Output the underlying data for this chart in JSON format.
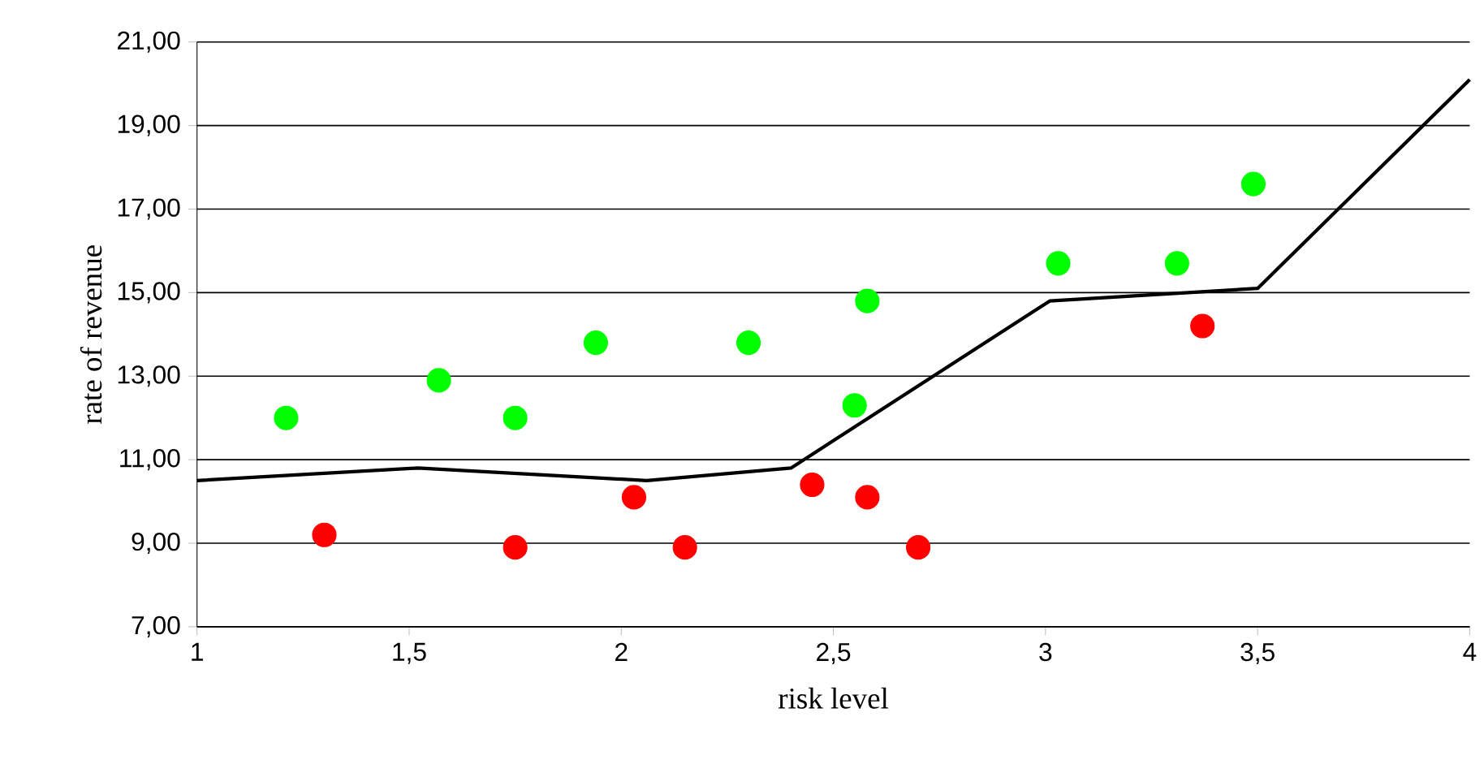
{
  "chart_data": {
    "type": "scatter",
    "xlabel": "risk level",
    "ylabel": "rate of revenue",
    "xlim": [
      1,
      4
    ],
    "ylim": [
      7,
      21
    ],
    "xticks": [
      1,
      {
        "value": 1.5,
        "label": "1,5"
      },
      2,
      {
        "value": 2.5,
        "label": "2,5"
      },
      3,
      {
        "value": 3.5,
        "label": "3,5"
      },
      4
    ],
    "yticks": [
      {
        "value": 7,
        "label": "7,00"
      },
      {
        "value": 9,
        "label": "9,00"
      },
      {
        "value": 11,
        "label": "11,00"
      },
      {
        "value": 13,
        "label": "13,00"
      },
      {
        "value": 15,
        "label": "15,00"
      },
      {
        "value": 17,
        "label": "17,00"
      },
      {
        "value": 19,
        "label": "19,00"
      },
      {
        "value": 21,
        "label": "21,00"
      }
    ],
    "grid": "y",
    "legend": false,
    "series": [
      {
        "marker": "circle",
        "color": "#00ff00",
        "x": [
          1.21,
          1.57,
          1.75,
          1.94,
          2.3,
          2.55,
          2.58,
          3.03,
          3.31,
          3.49
        ],
        "values": [
          12.0,
          12.9,
          12.0,
          13.8,
          13.8,
          12.3,
          14.8,
          15.7,
          15.7,
          17.6
        ]
      },
      {
        "marker": "circle",
        "color": "#ff0000",
        "x": [
          1.3,
          1.75,
          2.03,
          2.15,
          2.45,
          2.58,
          2.7,
          3.37
        ],
        "values": [
          9.2,
          8.9,
          10.1,
          8.9,
          10.4,
          10.1,
          8.9,
          14.2
        ]
      },
      {
        "type": "line",
        "marker": "none",
        "color": "#000000",
        "x": [
          1,
          1.52,
          2.06,
          2.4,
          3.01,
          3.5,
          4
        ],
        "values": [
          10.5,
          10.8,
          10.5,
          10.8,
          14.8,
          15.1,
          20.1
        ]
      }
    ]
  }
}
